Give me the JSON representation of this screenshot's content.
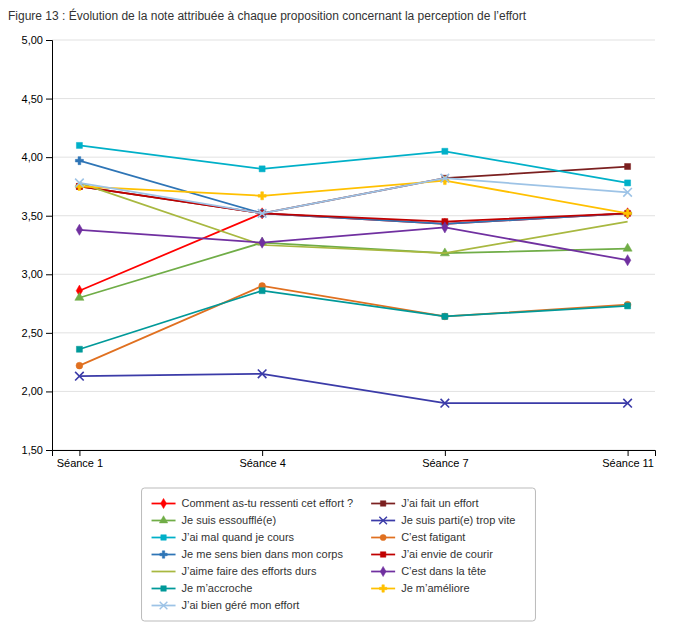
{
  "chart_data": {
    "type": "line",
    "title": "Figure 13 : Évolution de la note attribuée à chaque proposition concernant la perception de l’effort",
    "categories": [
      "Séance 1",
      "Séance 4",
      "Séance 7",
      "Séance 11"
    ],
    "ylim": [
      1.5,
      5.0
    ],
    "yticks": [
      {
        "value": 1.5,
        "label": "1,50"
      },
      {
        "value": 2.0,
        "label": "2,00"
      },
      {
        "value": 2.5,
        "label": "2,50"
      },
      {
        "value": 3.0,
        "label": "3,00"
      },
      {
        "value": 3.5,
        "label": "3,50"
      },
      {
        "value": 4.0,
        "label": "4,00"
      },
      {
        "value": 4.5,
        "label": "4,50"
      },
      {
        "value": 5.0,
        "label": "5,00"
      }
    ],
    "grid": true,
    "legend": "bottom",
    "series": [
      {
        "name": "Comment as-tu ressenti cet effort ?",
        "color": "#FF0000",
        "marker": "diamond",
        "values": [
          2.86,
          3.52,
          3.43,
          3.52
        ]
      },
      {
        "name": "J’ai fait un effort",
        "color": "#7B2020",
        "marker": "square",
        "values": [
          3.75,
          3.52,
          3.82,
          3.92
        ]
      },
      {
        "name": "Je suis essoufflé(e)",
        "color": "#70AD47",
        "marker": "triangle",
        "values": [
          2.8,
          3.27,
          3.18,
          3.22
        ]
      },
      {
        "name": "Je suis parti(e) trop vite",
        "color": "#3B3BA8",
        "marker": "x",
        "values": [
          2.13,
          2.15,
          1.9,
          1.9
        ]
      },
      {
        "name": "J’ai mal quand je cours",
        "color": "#00B0C8",
        "marker": "square",
        "values": [
          4.1,
          3.9,
          4.05,
          3.78
        ]
      },
      {
        "name": "C’est fatigant",
        "color": "#E07020",
        "marker": "circle",
        "values": [
          2.22,
          2.9,
          2.64,
          2.74
        ]
      },
      {
        "name": "Je me sens bien dans mon corps",
        "color": "#2E75B6",
        "marker": "plus",
        "values": [
          3.97,
          3.52,
          3.43,
          3.52
        ]
      },
      {
        "name": "J’ai envie de courir",
        "color": "#C00000",
        "marker": "square",
        "values": [
          3.75,
          3.52,
          3.45,
          3.52
        ]
      },
      {
        "name": "J’aime faire des efforts durs",
        "color": "#A8B840",
        "marker": "none",
        "values": [
          3.78,
          3.25,
          3.18,
          3.45
        ]
      },
      {
        "name": "C’est dans la tête",
        "color": "#7030A0",
        "marker": "diamond",
        "values": [
          3.38,
          3.27,
          3.4,
          3.12
        ]
      },
      {
        "name": "Je m’accroche",
        "color": "#009999",
        "marker": "square",
        "values": [
          2.36,
          2.86,
          2.64,
          2.73
        ]
      },
      {
        "name": "Je m’améliore",
        "color": "#FFC000",
        "marker": "plus",
        "values": [
          3.75,
          3.67,
          3.8,
          3.52
        ]
      },
      {
        "name": "J’ai bien géré mon effort",
        "color": "#9DC3E6",
        "marker": "x",
        "values": [
          3.78,
          3.52,
          3.82,
          3.7
        ]
      }
    ]
  }
}
